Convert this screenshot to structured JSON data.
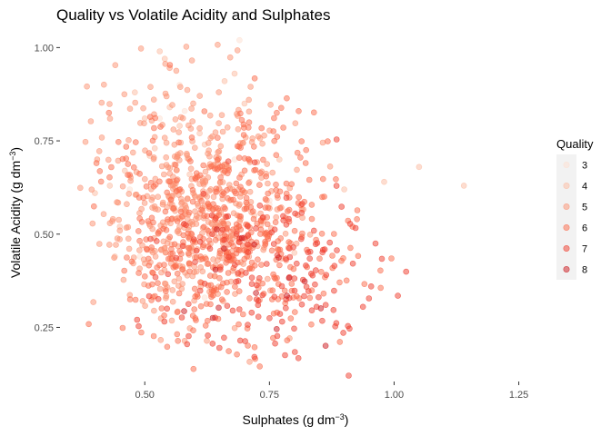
{
  "chart_data": {
    "type": "scatter",
    "title": "Quality vs Volatile Acidity and Sulphates",
    "xlabel": {
      "main": "Sulphates (g dm",
      "sup": "−3",
      "end": ")"
    },
    "ylabel": {
      "main": "Volatile Acidity (g dm",
      "sup": "−3",
      "end": ")"
    },
    "xlim": [
      0.33,
      1.3
    ],
    "ylim": [
      0.105,
      1.035
    ],
    "x_ticks": [
      0.5,
      0.75,
      1.0,
      1.25
    ],
    "x_tick_labels": [
      "0.50",
      "0.75",
      "1.00",
      "1.25"
    ],
    "y_ticks": [
      0.25,
      0.5,
      0.75,
      1.0
    ],
    "y_tick_labels": [
      "0.25",
      "0.50",
      "0.75",
      "1.00"
    ],
    "grid": false,
    "legend": {
      "title": "Quality",
      "position": "right",
      "entries": [
        "3",
        "4",
        "5",
        "6",
        "7",
        "8"
      ]
    },
    "series_colors": {
      "3": "#fee0d2",
      "4": "#fcbba1",
      "5": "#fc9272",
      "6": "#fb6a4a",
      "7": "#ef3b2c",
      "8": "#cb181d"
    },
    "point_alpha": 0.5,
    "points_note_free": true,
    "series": [
      {
        "name": "3",
        "x": [
          0.57,
          0.75,
          0.58,
          0.47,
          0.69,
          0.53,
          0.75,
          0.49,
          0.62,
          0.68
        ],
        "y": [
          0.9,
          0.58,
          0.83,
          0.62,
          1.02,
          0.81,
          0.59,
          0.44,
          0.33,
          0.7
        ]
      },
      {
        "name": "4",
        "x": [
          0.4,
          0.46,
          0.52,
          0.55,
          0.61,
          0.66,
          0.71,
          0.45,
          0.58,
          0.63,
          0.5,
          0.72,
          0.54,
          0.6,
          0.48,
          0.77,
          0.57,
          0.65,
          0.44,
          0.7,
          0.53,
          0.56,
          0.62,
          0.68,
          0.59,
          0.51,
          0.74,
          0.43,
          0.67,
          0.8,
          0.9,
          1.05,
          1.14,
          0.98
        ],
        "y": [
          0.61,
          0.67,
          0.73,
          0.84,
          0.77,
          0.91,
          0.64,
          0.52,
          0.58,
          0.68,
          0.81,
          0.55,
          0.97,
          0.48,
          0.88,
          0.7,
          0.79,
          0.62,
          0.44,
          0.85,
          0.99,
          0.57,
          0.74,
          0.93,
          0.66,
          0.71,
          0.5,
          0.63,
          0.59,
          0.45,
          0.62,
          0.68,
          0.63,
          0.64
        ]
      }
    ]
  }
}
